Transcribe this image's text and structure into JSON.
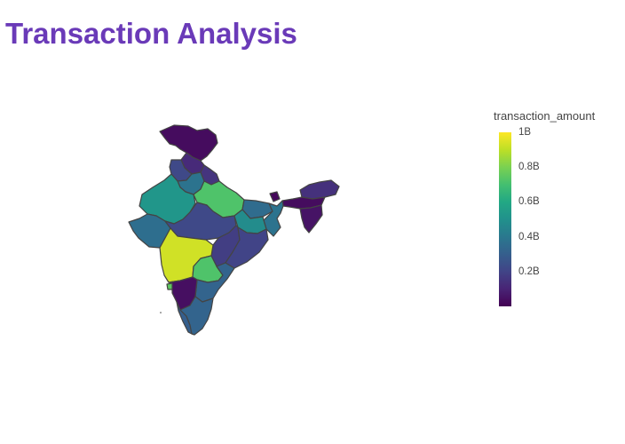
{
  "header": {
    "title": "Transaction Analysis",
    "title_color": "#6a3ab8"
  },
  "map": {
    "metric": "transaction_amount",
    "colorscale": "viridis",
    "border_color": "#444444",
    "regions": [
      {
        "name": "Jammu and Kashmir",
        "value": 0.03
      },
      {
        "name": "Himachal Pradesh",
        "value": 0.12
      },
      {
        "name": "Punjab",
        "value": 0.22
      },
      {
        "name": "Uttarakhand",
        "value": 0.15
      },
      {
        "name": "Haryana",
        "value": 0.38
      },
      {
        "name": "Rajasthan",
        "value": 0.52
      },
      {
        "name": "Uttar Pradesh",
        "value": 0.72
      },
      {
        "name": "Bihar",
        "value": 0.35
      },
      {
        "name": "Sikkim",
        "value": 0.02
      },
      {
        "name": "Assam",
        "value": 0.14
      },
      {
        "name": "Arunachal Pradesh",
        "value": 0.03
      },
      {
        "name": "Northeast States",
        "value": 0.05
      },
      {
        "name": "Gujarat",
        "value": 0.38
      },
      {
        "name": "Madhya Pradesh",
        "value": 0.48
      },
      {
        "name": "West Bengal",
        "value": 0.36
      },
      {
        "name": "Jharkhand",
        "value": 0.22
      },
      {
        "name": "Chhattisgarh",
        "value": 0.18
      },
      {
        "name": "Odisha",
        "value": 0.2
      },
      {
        "name": "Maharashtra",
        "value": 0.93
      },
      {
        "name": "Telangana",
        "value": 0.72
      },
      {
        "name": "Andhra Pradesh",
        "value": 0.32
      },
      {
        "name": "Karnataka",
        "value": 0.75
      },
      {
        "name": "Goa",
        "value": 0.04
      },
      {
        "name": "Kerala",
        "value": 0.3
      },
      {
        "name": "Tamil Nadu",
        "value": 0.32
      }
    ]
  },
  "colorbar": {
    "title": "transaction_amount",
    "ticks": [
      "1B",
      "0.8B",
      "0.6B",
      "0.4B",
      "0.2B"
    ],
    "tick_values": [
      1.0,
      0.8,
      0.6,
      0.4,
      0.2
    ],
    "min": 0,
    "max": 1.0
  }
}
